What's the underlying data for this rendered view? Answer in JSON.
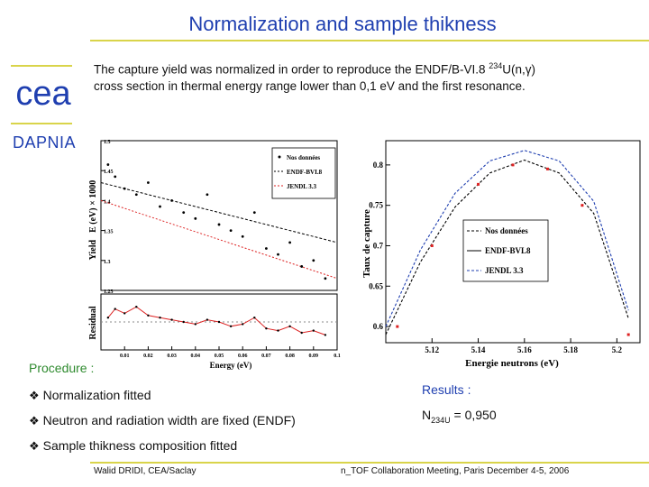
{
  "slide": {
    "title": "Normalization and sample thikness",
    "logo_text": "cea",
    "lab": "DAPNIA",
    "intro_part1": "The capture yield was normalized in order to reproduce the ENDF/B-VI.8 ",
    "intro_isotope_sup": "234",
    "intro_part2": "U(n,γ)",
    "intro_line2": "cross section in thermal energy range lower than 0,1 eV and the first resonance.",
    "procedure_heading": "Procedure :",
    "bullets": [
      "Normalization fitted",
      "Neutron and radiation width are fixed (ENDF)",
      "Sample thikness composition fitted"
    ],
    "bullet_glyph": "❖",
    "results_heading": "Results :",
    "result_label": "N",
    "result_sub": "234U",
    "result_value": " = 0,950",
    "footer_left": "Walid DRIDI, CEA/Saclay",
    "footer_right": "n_TOF Collaboration Meeting, Paris December 4-5, 2006",
    "colors": {
      "title": "#1f3fb0",
      "rule": "#d9d44a",
      "procedure": "#2e8a2e",
      "logo": "#1f3fb0"
    }
  },
  "chart_data": [
    {
      "type": "scatter",
      "ylabel_yield": "Yield",
      "ylabel_scale": "E (eV) × 1000",
      "ylabel_residual": "Residual",
      "xlabel": "Energy (eV)",
      "xlim": [
        0,
        0.1
      ],
      "ylim": [
        1.25,
        1.5
      ],
      "yticks": [
        "1.5",
        "1.45",
        "1.4",
        "1.35",
        "1.3",
        "1.25"
      ],
      "xticks": [
        "0.01",
        "0.02",
        "0.03",
        "0.04",
        "0.05",
        "0.06",
        "0.07",
        "0.08",
        "0.09",
        "0.1"
      ],
      "legend": [
        "Nos données",
        "ENDF-BVI.8",
        "JENDL 3.3"
      ],
      "series": [
        {
          "name": "Nos données",
          "x": [
            0.003,
            0.006,
            0.01,
            0.015,
            0.02,
            0.025,
            0.03,
            0.035,
            0.04,
            0.045,
            0.05,
            0.055,
            0.06,
            0.065,
            0.07,
            0.075,
            0.08,
            0.085,
            0.09,
            0.095
          ],
          "values": [
            1.46,
            1.44,
            1.42,
            1.41,
            1.43,
            1.39,
            1.4,
            1.38,
            1.37,
            1.41,
            1.36,
            1.35,
            1.34,
            1.38,
            1.32,
            1.31,
            1.33,
            1.29,
            1.3,
            1.27
          ]
        },
        {
          "name": "ENDF-BVI.8",
          "x": [
            0,
            0.1
          ],
          "values": [
            1.43,
            1.33
          ]
        },
        {
          "name": "JENDL 3.3",
          "x": [
            0,
            0.1
          ],
          "values": [
            1.4,
            1.27
          ]
        }
      ],
      "residual": [
        0.2,
        0.6,
        0.4,
        0.7,
        0.3,
        0.2,
        0.1,
        0.0,
        -0.1,
        0.1,
        0.0,
        -0.2,
        -0.1,
        0.2,
        -0.3,
        -0.4,
        -0.2,
        -0.5,
        -0.4,
        -0.6
      ]
    },
    {
      "type": "line",
      "xlabel": "Energie neutrons (eV)",
      "ylabel": "Taux de capture",
      "xlim": [
        5.1,
        5.21
      ],
      "ylim": [
        0.58,
        0.83
      ],
      "xticks": [
        "5.12",
        "5.14",
        "5.16",
        "5.18",
        "5.2"
      ],
      "yticks": [
        "0.8",
        "0.75",
        "0.7",
        "0.65",
        "0.6"
      ],
      "legend": [
        "Nos données",
        "ENDF-BVL8",
        "JENDL 3.3"
      ],
      "series": [
        {
          "name": "Nos données",
          "x": [
            5.105,
            5.12,
            5.14,
            5.155,
            5.17,
            5.185,
            5.205
          ],
          "values": [
            0.6,
            0.7,
            0.776,
            0.8,
            0.795,
            0.75,
            0.59
          ]
        },
        {
          "name": "ENDF-BVL8",
          "x": [
            5.1,
            5.115,
            5.13,
            5.145,
            5.16,
            5.175,
            5.19,
            5.205
          ],
          "values": [
            0.59,
            0.68,
            0.748,
            0.79,
            0.806,
            0.79,
            0.74,
            0.61
          ]
        },
        {
          "name": "JENDL 3.3",
          "x": [
            5.1,
            5.115,
            5.13,
            5.145,
            5.16,
            5.175,
            5.19,
            5.205
          ],
          "values": [
            0.6,
            0.695,
            0.765,
            0.805,
            0.818,
            0.805,
            0.755,
            0.62
          ]
        }
      ]
    }
  ]
}
